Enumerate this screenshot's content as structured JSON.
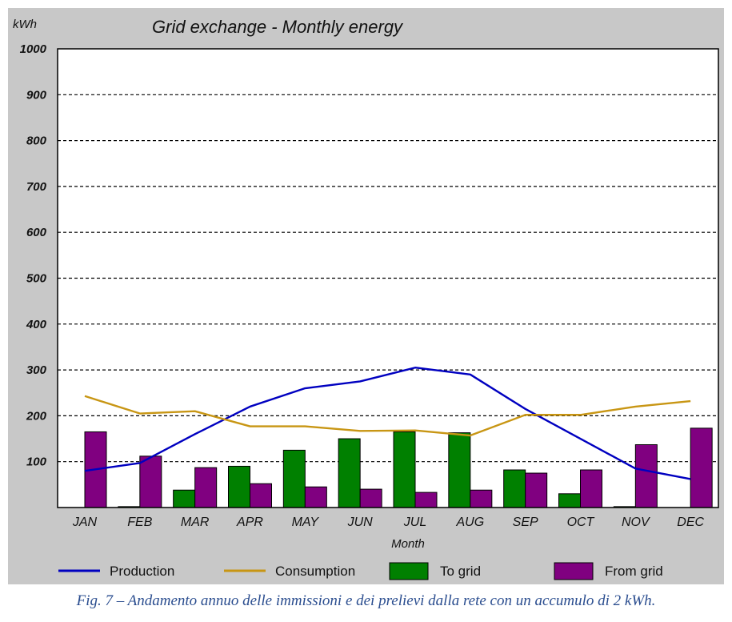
{
  "caption": "Fig. 7 – Andamento annuo delle immissioni e dei prelievi dalla rete con un accumulo di 2 kWh.",
  "chart_data": {
    "type": "bar",
    "title": "Grid exchange - Monthly energy",
    "ylabel": "kWh",
    "xlabel": "Month",
    "ylim": [
      0,
      1000
    ],
    "yticks": [
      100,
      200,
      300,
      400,
      500,
      600,
      700,
      800,
      900,
      1000
    ],
    "grid": true,
    "legend_position": "bottom",
    "categories": [
      "JAN",
      "FEB",
      "MAR",
      "APR",
      "MAY",
      "JUN",
      "JUL",
      "AUG",
      "SEP",
      "OCT",
      "NOV",
      "DEC"
    ],
    "bar_series": [
      {
        "name": "To grid",
        "color": "#008000",
        "values": [
          0,
          2,
          38,
          90,
          125,
          150,
          165,
          163,
          82,
          30,
          2,
          0
        ]
      },
      {
        "name": "From grid",
        "color": "#800080",
        "values": [
          165,
          112,
          87,
          52,
          45,
          40,
          33,
          38,
          75,
          82,
          137,
          173
        ]
      }
    ],
    "line_series": [
      {
        "name": "Production",
        "color": "#0000c0",
        "values": [
          80,
          97,
          160,
          220,
          260,
          275,
          305,
          290,
          215,
          150,
          85,
          62
        ]
      },
      {
        "name": "Consumption",
        "color": "#c89614",
        "values": [
          243,
          205,
          210,
          177,
          177,
          167,
          168,
          157,
          202,
          202,
          220,
          232
        ]
      }
    ]
  }
}
